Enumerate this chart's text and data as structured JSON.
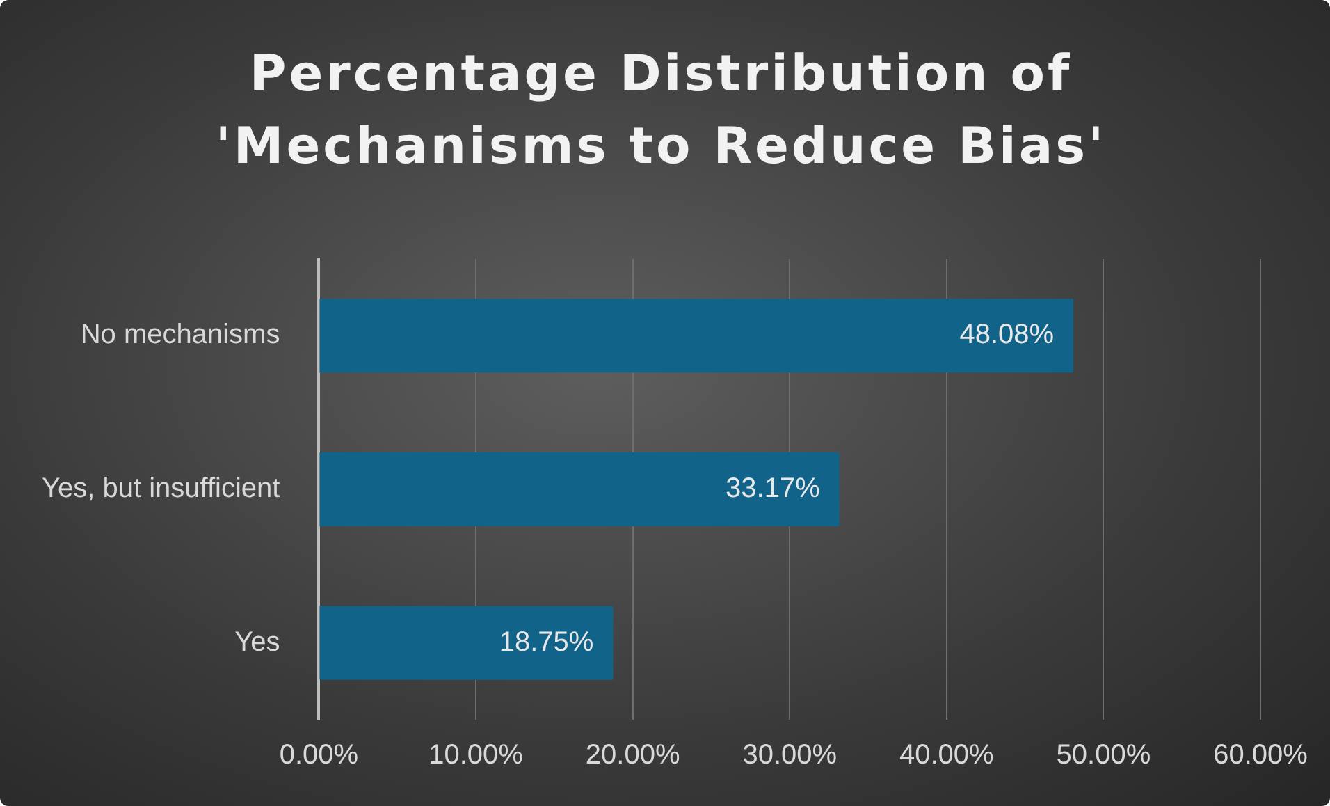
{
  "chart_data": {
    "type": "bar",
    "orientation": "horizontal",
    "title": "Percentage Distribution of 'Mechanisms to Reduce Bias'",
    "categories": [
      "No mechanisms",
      "Yes, but insufficient",
      "Yes"
    ],
    "values": [
      48.08,
      33.17,
      18.75
    ],
    "value_labels": [
      "48.08%",
      "33.17%",
      "18.75%"
    ],
    "color": "#12638a",
    "xlim": [
      0,
      60
    ],
    "xticks": [
      {
        "value": 0,
        "label": "0.00%"
      },
      {
        "value": 10,
        "label": "10.00%"
      },
      {
        "value": 20,
        "label": "20.00%"
      },
      {
        "value": 30,
        "label": "30.00%"
      },
      {
        "value": 40,
        "label": "40.00%"
      },
      {
        "value": 50,
        "label": "50.00%"
      },
      {
        "value": 60,
        "label": "60.00%"
      }
    ],
    "grid": "x",
    "legend": false
  }
}
